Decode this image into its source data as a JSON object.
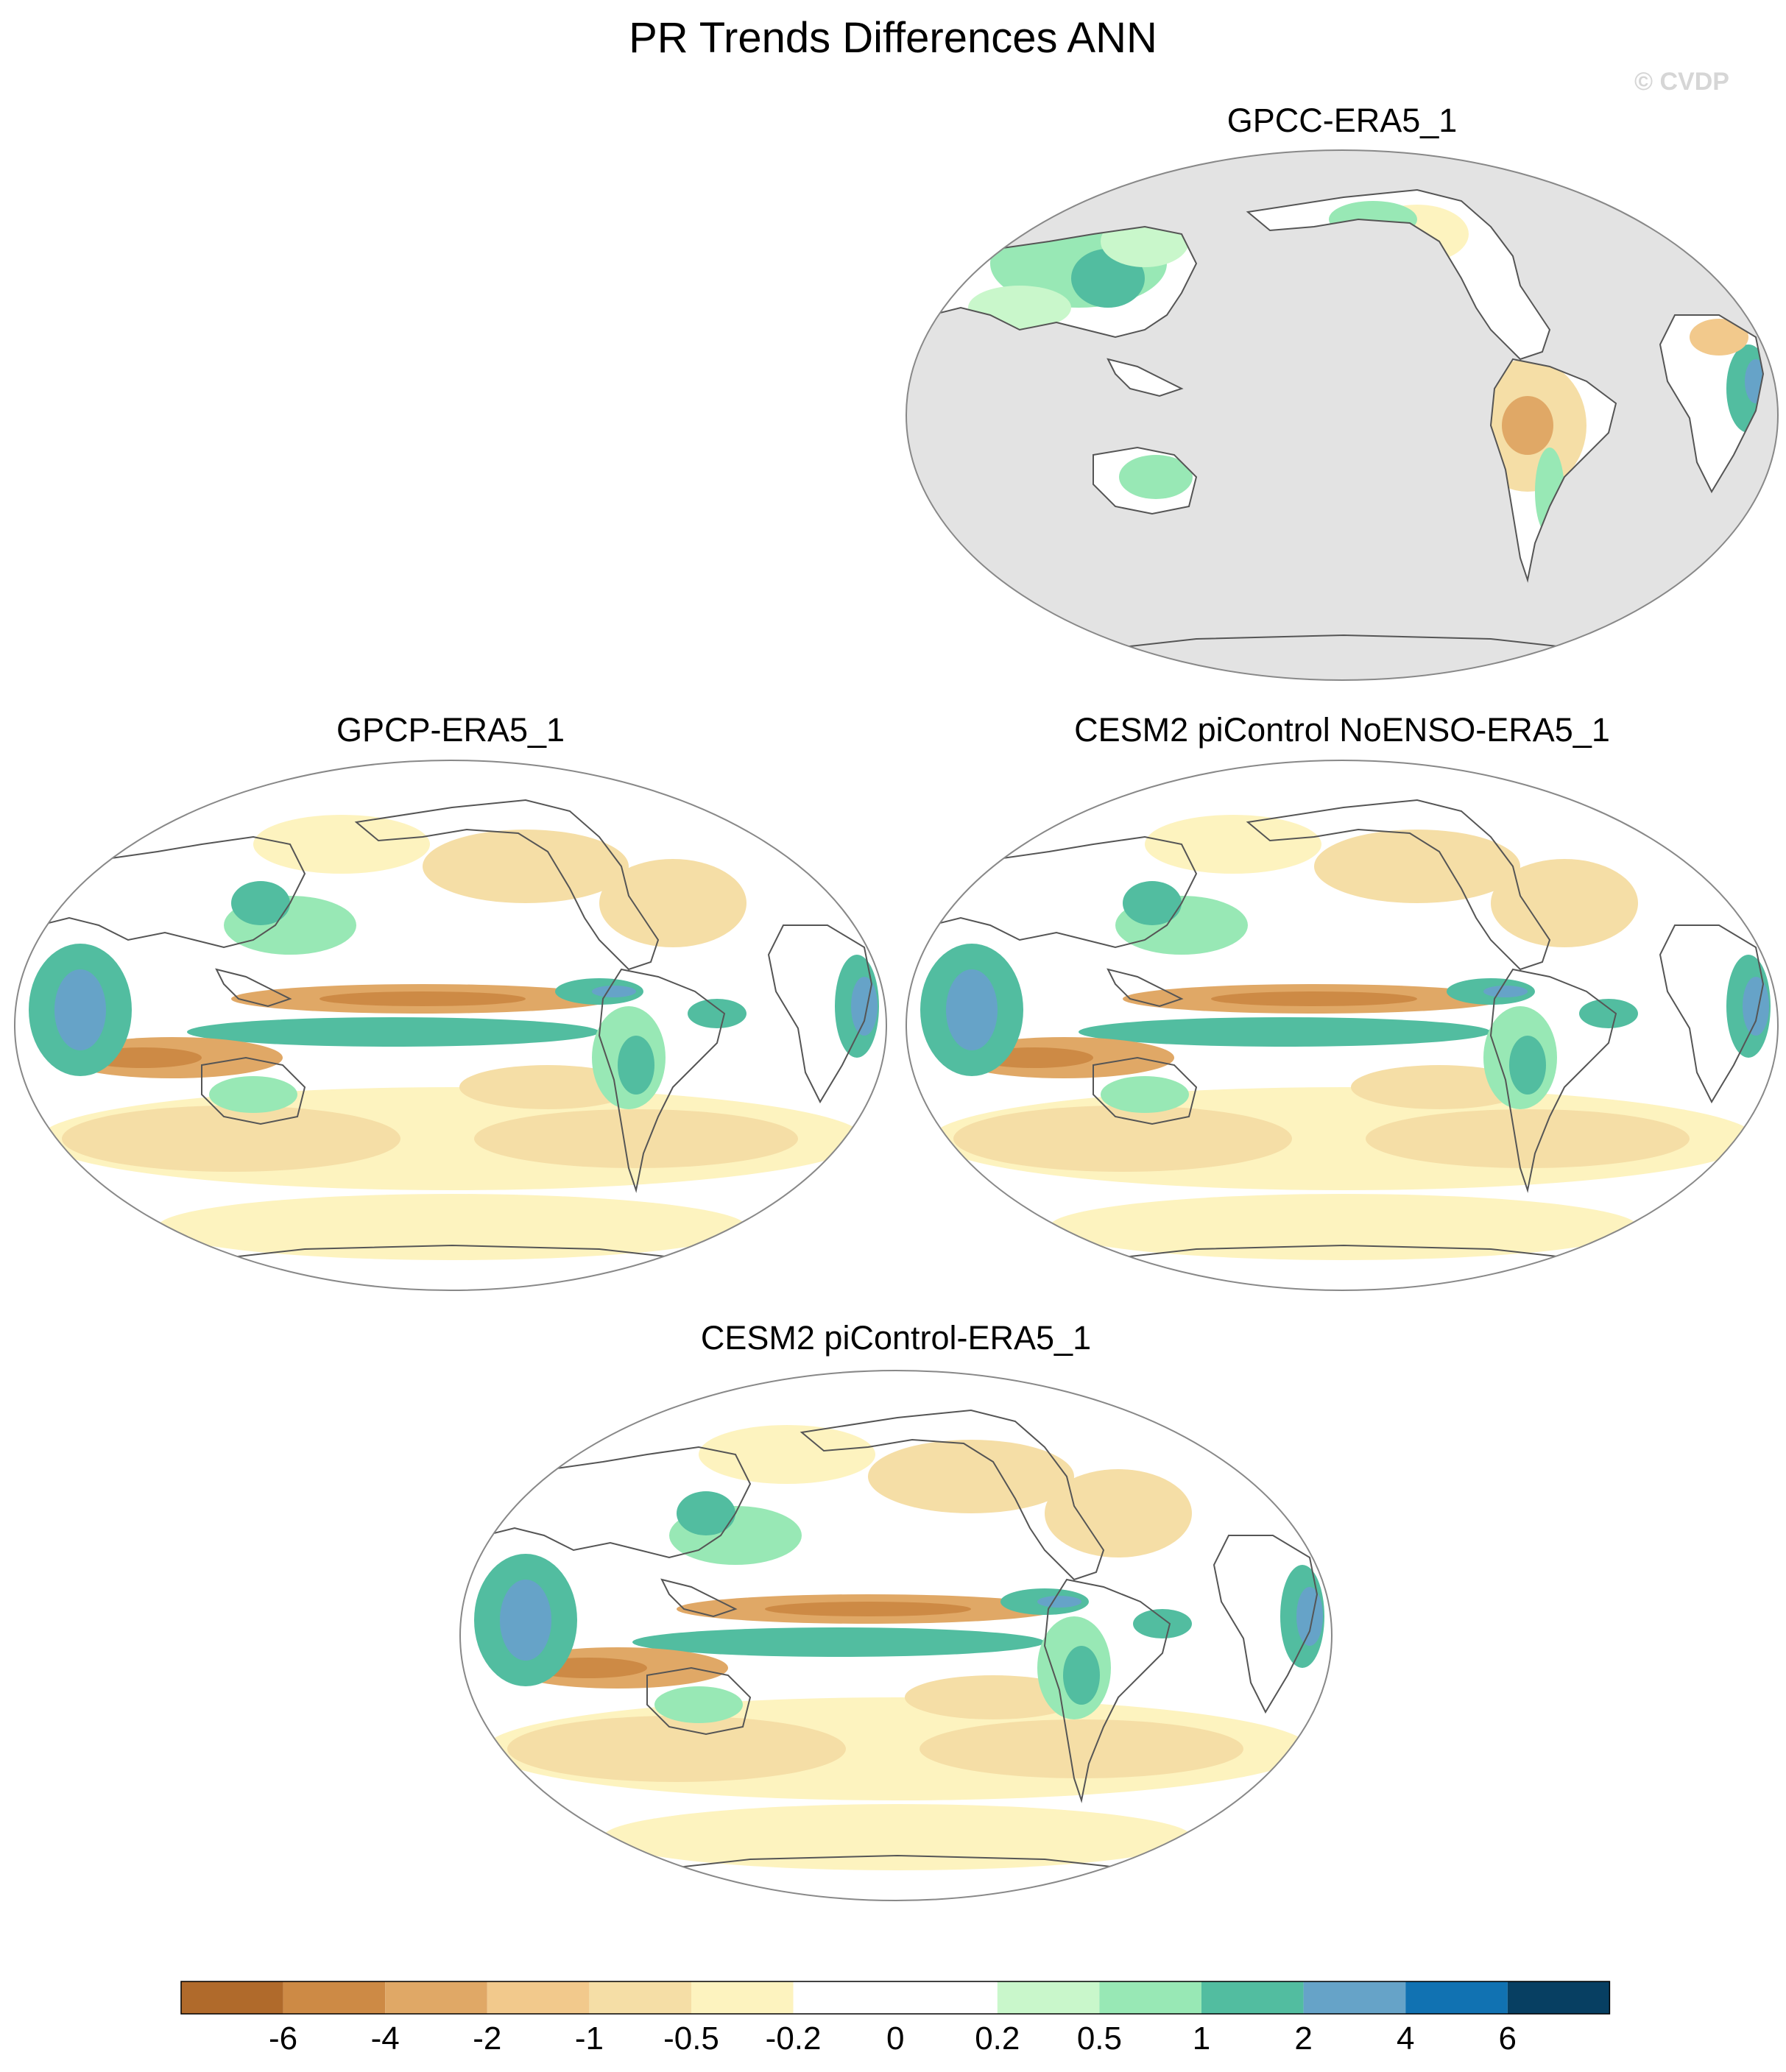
{
  "title": "PR Trends Differences ANN",
  "watermark": "© CVDP",
  "colors": {
    "ocean_mask": "#e3e3e3",
    "coast": "#555555",
    "frame": "#888888"
  },
  "panels": [
    {
      "id": "gpcc",
      "label": "GPCC-ERA5_1",
      "land_only": true
    },
    {
      "id": "gpcp",
      "label": "GPCP-ERA5_1",
      "land_only": false
    },
    {
      "id": "noenso",
      "label": "CESM2 piControl NoENSO-ERA5_1",
      "land_only": false
    },
    {
      "id": "picontrol",
      "label": "CESM2 piControl-ERA5_1",
      "land_only": false
    }
  ],
  "colorbar": {
    "colors": [
      "#b06a2b",
      "#cd8a45",
      "#e0a866",
      "#f2c98c",
      "#f5dea6",
      "#fdf3bf",
      "#ffffff",
      "#ffffff",
      "#c9f7cb",
      "#98e8b5",
      "#52bda0",
      "#66a3c8",
      "#1172b2",
      "#073f62"
    ],
    "tick_labels": [
      "-6",
      "-4",
      "-2",
      "-1",
      "-0.5",
      "-0.2",
      "0",
      "0.2",
      "0.5",
      "1",
      "2",
      "4",
      "6"
    ]
  }
}
